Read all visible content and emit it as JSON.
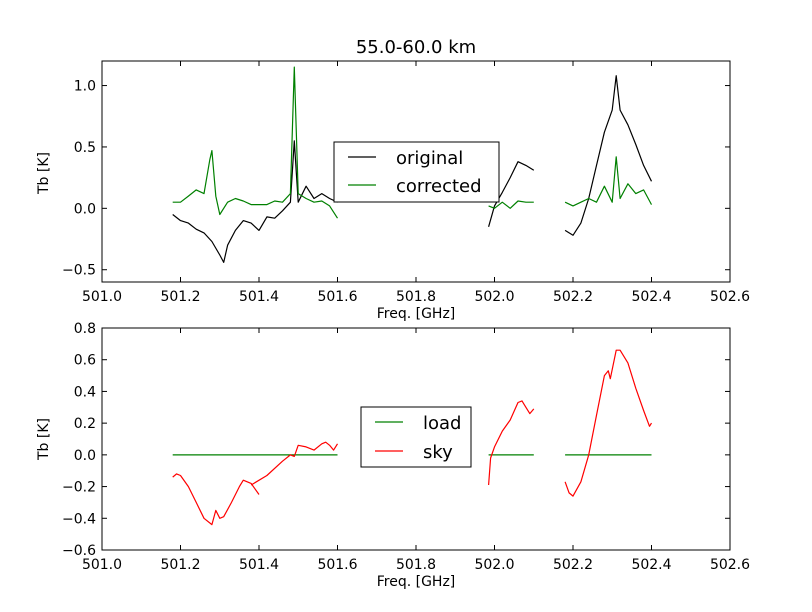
{
  "figure_title": "55.0-60.0 km",
  "chart_data": [
    {
      "type": "line",
      "title": "55.0-60.0 km",
      "xlabel": "Freq. [GHz]",
      "ylabel": "Tb [K]",
      "xlim": [
        501.0,
        502.6
      ],
      "ylim": [
        -0.6,
        1.2
      ],
      "xticks": [
        "501.0",
        "501.2",
        "501.4",
        "501.6",
        "501.8",
        "502.0",
        "502.2",
        "502.4",
        "502.6"
      ],
      "yticks": [
        "−0.5",
        "0.0",
        "0.5",
        "1.0"
      ],
      "ytick_values": [
        -0.5,
        0.0,
        0.5,
        1.0
      ],
      "grid": false,
      "legend_position": "center",
      "series": [
        {
          "name": "original",
          "color": "#000000",
          "segments": [
            [
              [
                501.18,
                -0.05
              ],
              [
                501.2,
                -0.1
              ],
              [
                501.22,
                -0.12
              ],
              [
                501.24,
                -0.17
              ],
              [
                501.26,
                -0.2
              ],
              [
                501.28,
                -0.27
              ],
              [
                501.3,
                -0.38
              ],
              [
                501.31,
                -0.44
              ],
              [
                501.32,
                -0.3
              ],
              [
                501.34,
                -0.18
              ],
              [
                501.36,
                -0.1
              ],
              [
                501.38,
                -0.12
              ],
              [
                501.4,
                -0.18
              ],
              [
                501.42,
                -0.07
              ],
              [
                501.44,
                -0.08
              ],
              [
                501.46,
                -0.02
              ],
              [
                501.48,
                0.05
              ],
              [
                501.49,
                0.55
              ],
              [
                501.5,
                0.05
              ],
              [
                501.52,
                0.18
              ],
              [
                501.54,
                0.08
              ],
              [
                501.56,
                0.12
              ],
              [
                501.58,
                0.08
              ],
              [
                501.6,
                0.05
              ]
            ],
            [
              [
                501.985,
                -0.15
              ],
              [
                502.0,
                0.02
              ],
              [
                502.02,
                0.13
              ],
              [
                502.04,
                0.25
              ],
              [
                502.06,
                0.38
              ],
              [
                502.08,
                0.35
              ],
              [
                502.1,
                0.31
              ]
            ],
            [
              [
                502.18,
                -0.18
              ],
              [
                502.2,
                -0.22
              ],
              [
                502.22,
                -0.12
              ],
              [
                502.24,
                0.08
              ],
              [
                502.26,
                0.35
              ],
              [
                502.28,
                0.62
              ],
              [
                502.3,
                0.8
              ],
              [
                502.31,
                1.08
              ],
              [
                502.32,
                0.8
              ],
              [
                502.34,
                0.68
              ],
              [
                502.36,
                0.52
              ],
              [
                502.38,
                0.35
              ],
              [
                502.4,
                0.22
              ]
            ]
          ]
        },
        {
          "name": "corrected",
          "color": "#008000",
          "segments": [
            [
              [
                501.18,
                0.05
              ],
              [
                501.2,
                0.05
              ],
              [
                501.22,
                0.1
              ],
              [
                501.24,
                0.15
              ],
              [
                501.26,
                0.12
              ],
              [
                501.275,
                0.4
              ],
              [
                501.28,
                0.47
              ],
              [
                501.29,
                0.1
              ],
              [
                501.3,
                -0.05
              ],
              [
                501.32,
                0.05
              ],
              [
                501.34,
                0.08
              ],
              [
                501.36,
                0.06
              ],
              [
                501.38,
                0.03
              ],
              [
                501.4,
                0.03
              ],
              [
                501.42,
                0.03
              ],
              [
                501.44,
                0.06
              ],
              [
                501.46,
                0.05
              ],
              [
                501.48,
                0.12
              ],
              [
                501.49,
                1.15
              ],
              [
                501.5,
                0.12
              ],
              [
                501.52,
                0.08
              ],
              [
                501.54,
                0.05
              ],
              [
                501.56,
                0.06
              ],
              [
                501.58,
                0.02
              ],
              [
                501.6,
                -0.08
              ]
            ],
            [
              [
                501.985,
                0.02
              ],
              [
                502.0,
                0.0
              ],
              [
                502.02,
                0.05
              ],
              [
                502.04,
                0.0
              ],
              [
                502.06,
                0.06
              ],
              [
                502.08,
                0.05
              ],
              [
                502.1,
                0.05
              ]
            ],
            [
              [
                502.18,
                0.05
              ],
              [
                502.2,
                0.02
              ],
              [
                502.22,
                0.05
              ],
              [
                502.24,
                0.08
              ],
              [
                502.26,
                0.05
              ],
              [
                502.28,
                0.18
              ],
              [
                502.3,
                0.05
              ],
              [
                502.31,
                0.42
              ],
              [
                502.32,
                0.08
              ],
              [
                502.34,
                0.2
              ],
              [
                502.36,
                0.12
              ],
              [
                502.38,
                0.15
              ],
              [
                502.4,
                0.03
              ]
            ]
          ]
        }
      ]
    },
    {
      "type": "line",
      "title": "",
      "xlabel": "Freq. [GHz]",
      "ylabel": "Tb [K]",
      "xlim": [
        501.0,
        502.6
      ],
      "ylim": [
        -0.6,
        0.8
      ],
      "xticks": [
        "501.0",
        "501.2",
        "501.4",
        "501.6",
        "501.8",
        "502.0",
        "502.2",
        "502.4",
        "502.6"
      ],
      "yticks": [
        "−0.6",
        "−0.4",
        "−0.2",
        "0.0",
        "0.2",
        "0.4",
        "0.6",
        "0.8"
      ],
      "ytick_values": [
        -0.6,
        -0.4,
        -0.2,
        0.0,
        0.2,
        0.4,
        0.6,
        0.8
      ],
      "grid": false,
      "legend_position": "center",
      "series": [
        {
          "name": "load",
          "color": "#008000",
          "segments": [
            [
              [
                501.18,
                0.0
              ],
              [
                501.6,
                0.0
              ]
            ],
            [
              [
                501.985,
                0.0
              ],
              [
                502.1,
                0.0
              ]
            ],
            [
              [
                502.18,
                0.0
              ],
              [
                502.4,
                0.0
              ]
            ]
          ]
        },
        {
          "name": "sky",
          "color": "#ff0000",
          "segments": [
            [
              [
                501.18,
                -0.14
              ],
              [
                501.19,
                -0.12
              ],
              [
                501.2,
                -0.13
              ],
              [
                501.22,
                -0.2
              ],
              [
                501.24,
                -0.3
              ],
              [
                501.26,
                -0.4
              ],
              [
                501.28,
                -0.44
              ],
              [
                501.29,
                -0.35
              ],
              [
                501.3,
                -0.4
              ],
              [
                501.31,
                -0.39
              ],
              [
                501.33,
                -0.3
              ],
              [
                501.35,
                -0.2
              ],
              [
                501.36,
                -0.16
              ],
              [
                501.38,
                -0.18
              ],
              [
                501.4,
                -0.25
              ]
            ],
            [
              [
                501.38,
                -0.19
              ],
              [
                501.42,
                -0.13
              ],
              [
                501.46,
                -0.04
              ],
              [
                501.48,
                0.0
              ],
              [
                501.49,
                -0.01
              ],
              [
                501.5,
                0.06
              ],
              [
                501.52,
                0.05
              ],
              [
                501.54,
                0.03
              ],
              [
                501.56,
                0.07
              ],
              [
                501.57,
                0.08
              ],
              [
                501.58,
                0.06
              ],
              [
                501.59,
                0.03
              ],
              [
                501.6,
                0.07
              ]
            ],
            [
              [
                501.985,
                -0.19
              ],
              [
                501.99,
                -0.02
              ],
              [
                502.0,
                0.05
              ],
              [
                502.02,
                0.15
              ],
              [
                502.04,
                0.22
              ],
              [
                502.06,
                0.33
              ],
              [
                502.07,
                0.34
              ],
              [
                502.08,
                0.3
              ],
              [
                502.09,
                0.26
              ],
              [
                502.1,
                0.29
              ]
            ],
            [
              [
                502.18,
                -0.17
              ],
              [
                502.19,
                -0.24
              ],
              [
                502.2,
                -0.26
              ],
              [
                502.22,
                -0.17
              ],
              [
                502.24,
                0.0
              ],
              [
                502.26,
                0.25
              ],
              [
                502.28,
                0.5
              ],
              [
                502.29,
                0.53
              ],
              [
                502.295,
                0.48
              ],
              [
                502.31,
                0.66
              ],
              [
                502.32,
                0.66
              ],
              [
                502.34,
                0.58
              ],
              [
                502.36,
                0.42
              ],
              [
                502.38,
                0.28
              ],
              [
                502.395,
                0.18
              ],
              [
                502.4,
                0.2
              ]
            ]
          ]
        }
      ]
    }
  ]
}
